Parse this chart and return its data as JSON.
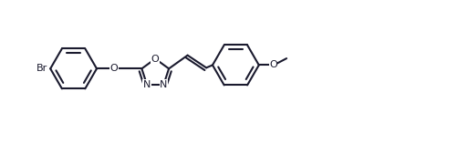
{
  "bg_color": "#ffffff",
  "bond_color": "#1a1a2e",
  "atom_color": "#1a1a2e",
  "line_width": 1.5,
  "font_size": 8.0,
  "fig_width": 5.13,
  "fig_height": 1.8,
  "dpi": 100,
  "xlim": [
    -0.3,
    10.2
  ],
  "ylim": [
    0.5,
    4.0
  ]
}
